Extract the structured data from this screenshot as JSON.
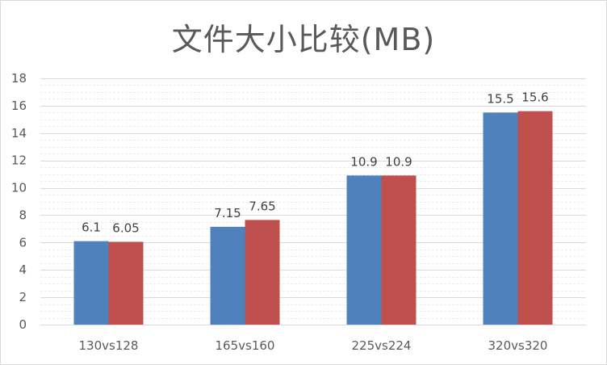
{
  "chart_data": {
    "type": "bar",
    "title": "文件大小比较(MB)",
    "xlabel": "",
    "ylabel": "",
    "categories": [
      "130vs128",
      "165vs160",
      "225vs224",
      "320vs320"
    ],
    "series": [
      {
        "name": "Series 1",
        "color": "#4f81bd",
        "values": [
          6.1,
          7.15,
          10.9,
          15.5
        ],
        "labels": [
          "6.1",
          "7.15",
          "10.9",
          "15.5"
        ]
      },
      {
        "name": "Series 2",
        "color": "#c0504d",
        "values": [
          6.05,
          7.65,
          10.9,
          15.6
        ],
        "labels": [
          "6.05",
          "7.65",
          "10.9",
          "15.6"
        ]
      }
    ],
    "ylim": [
      0,
      18
    ],
    "yticks": [
      "0",
      "2",
      "4",
      "6",
      "8",
      "10",
      "12",
      "14",
      "16",
      "18"
    ],
    "grid": true,
    "legend": "none"
  }
}
